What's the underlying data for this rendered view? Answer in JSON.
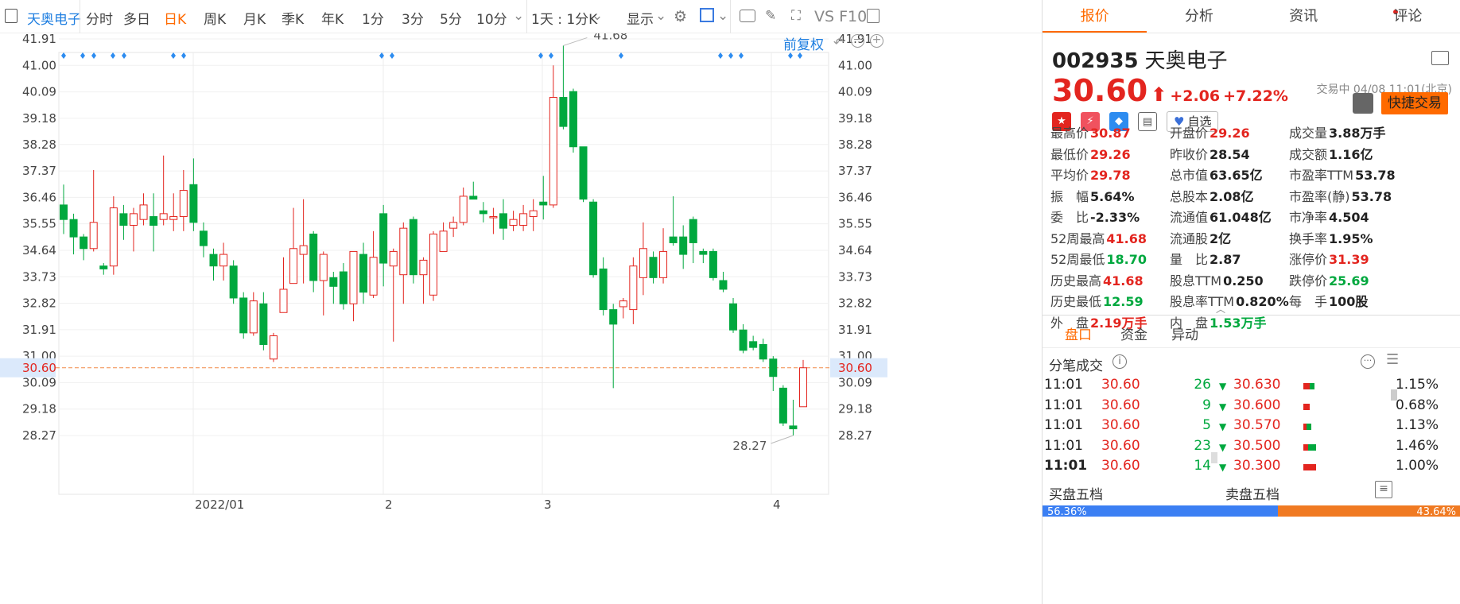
{
  "toolbar": {
    "stock_name": "天奥电子",
    "periods": [
      "分时",
      "多日",
      "日K",
      "周K",
      "月K",
      "季K",
      "年K",
      "1分",
      "3分",
      "5分",
      "10分"
    ],
    "range_select": "1天 : 1分K",
    "display_label": "显示",
    "f10_label": "VS F10"
  },
  "chart": {
    "adjust_label": "前复权",
    "y_ticks": [
      "41.91",
      "41.00",
      "40.09",
      "39.18",
      "38.28",
      "37.37",
      "36.46",
      "35.55",
      "34.64",
      "33.73",
      "32.82",
      "31.91",
      "31.00",
      "30.09",
      "29.18",
      "28.27"
    ],
    "current_price_label": "30.60",
    "x_labels": [
      "2022/01",
      "2",
      "3",
      "4"
    ],
    "max_label": "41.68",
    "min_label": "28.27"
  },
  "chart_data": {
    "type": "candlestick",
    "ylim": [
      27.6,
      42.5
    ],
    "current_price": 30.6,
    "high_annotation": 41.68,
    "low_annotation": 28.27,
    "candles": [
      [
        36.2,
        35.7,
        36.9,
        35.2
      ],
      [
        35.7,
        35.1,
        35.9,
        34.5
      ],
      [
        35.1,
        34.7,
        35.2,
        34.3
      ],
      [
        34.7,
        35.6,
        37.4,
        34.6
      ],
      [
        34.1,
        34.0,
        34.2,
        33.8
      ],
      [
        34.1,
        36.1,
        36.5,
        33.8
      ],
      [
        35.9,
        35.5,
        36.2,
        35.0
      ],
      [
        35.5,
        35.9,
        36.1,
        34.6
      ],
      [
        35.7,
        36.2,
        36.6,
        35.5
      ],
      [
        35.8,
        35.5,
        36.6,
        34.6
      ],
      [
        35.7,
        35.9,
        37.9,
        35.5
      ],
      [
        35.7,
        35.8,
        36.6,
        35.3
      ],
      [
        35.8,
        36.7,
        37.4,
        35.3
      ],
      [
        36.9,
        35.6,
        37.8,
        35.3
      ],
      [
        35.3,
        34.8,
        35.6,
        34.4
      ],
      [
        34.5,
        34.1,
        34.7,
        33.6
      ],
      [
        34.1,
        34.5,
        34.9,
        33.6
      ],
      [
        34.1,
        33.0,
        34.3,
        32.8
      ],
      [
        33.0,
        31.8,
        33.2,
        31.6
      ],
      [
        31.8,
        32.9,
        33.2,
        31.7
      ],
      [
        32.8,
        31.4,
        33.2,
        31.2
      ],
      [
        30.9,
        31.7,
        31.8,
        30.8
      ],
      [
        32.5,
        33.3,
        34.4,
        32.5
      ],
      [
        33.5,
        34.7,
        36.1,
        33.5
      ],
      [
        34.5,
        34.8,
        36.4,
        33.5
      ],
      [
        35.2,
        33.6,
        35.3,
        33.2
      ],
      [
        33.6,
        34.5,
        34.6,
        32.4
      ],
      [
        33.7,
        33.4,
        33.9,
        32.8
      ],
      [
        33.9,
        32.8,
        34.2,
        32.6
      ],
      [
        32.8,
        34.6,
        34.6,
        32.2
      ],
      [
        34.5,
        33.2,
        34.9,
        32.8
      ],
      [
        33.1,
        34.4,
        35.3,
        33.0
      ],
      [
        35.9,
        34.2,
        36.2,
        33.4
      ],
      [
        34.1,
        34.6,
        34.7,
        31.5
      ],
      [
        33.8,
        35.4,
        35.6,
        32.8
      ],
      [
        35.7,
        33.8,
        35.8,
        33.5
      ],
      [
        33.8,
        34.3,
        34.4,
        32.8
      ],
      [
        33.1,
        35.2,
        35.3,
        32.9
      ],
      [
        34.6,
        35.3,
        35.6,
        34.6
      ],
      [
        35.4,
        35.6,
        35.8,
        35.1
      ],
      [
        35.6,
        36.5,
        36.8,
        35.5
      ],
      [
        36.5,
        36.4,
        37.0,
        36.4
      ],
      [
        36.0,
        35.9,
        36.3,
        35.6
      ],
      [
        35.8,
        35.8,
        36.1,
        35.2
      ],
      [
        35.9,
        35.4,
        36.4,
        35.0
      ],
      [
        35.5,
        35.7,
        36.0,
        35.3
      ],
      [
        35.5,
        35.9,
        36.2,
        35.3
      ],
      [
        35.8,
        36.0,
        36.4,
        35.3
      ],
      [
        36.3,
        36.2,
        37.2,
        35.7
      ],
      [
        36.2,
        39.9,
        41.0,
        36.1
      ],
      [
        39.9,
        38.9,
        41.68,
        38.8
      ],
      [
        40.1,
        38.2,
        40.2,
        38.0
      ],
      [
        38.2,
        36.4,
        38.2,
        36.3
      ],
      [
        36.3,
        33.8,
        36.4,
        33.7
      ],
      [
        34.0,
        32.6,
        34.4,
        32.4
      ],
      [
        32.6,
        32.1,
        32.8,
        29.9
      ],
      [
        32.7,
        32.9,
        33.0,
        32.3
      ],
      [
        32.6,
        34.1,
        34.4,
        32.1
      ],
      [
        33.7,
        34.7,
        35.6,
        33.1
      ],
      [
        34.4,
        33.7,
        34.6,
        33.5
      ],
      [
        33.7,
        34.6,
        35.4,
        33.5
      ],
      [
        35.1,
        34.9,
        36.5,
        34.8
      ],
      [
        35.1,
        34.5,
        35.5,
        34.0
      ],
      [
        35.7,
        34.9,
        35.8,
        34.2
      ],
      [
        34.6,
        34.5,
        34.7,
        34.2
      ],
      [
        34.6,
        33.7,
        34.7,
        33.6
      ],
      [
        33.6,
        33.3,
        33.9,
        33.2
      ],
      [
        32.8,
        31.9,
        33.0,
        31.8
      ],
      [
        31.9,
        31.2,
        32.1,
        31.1
      ],
      [
        31.5,
        31.3,
        31.7,
        31.2
      ],
      [
        31.4,
        30.9,
        31.6,
        30.8
      ],
      [
        30.9,
        30.3,
        31.0,
        29.8
      ],
      [
        29.9,
        28.7,
        30.0,
        28.6
      ],
      [
        28.6,
        28.5,
        29.5,
        28.27
      ],
      [
        29.26,
        30.6,
        30.87,
        29.26
      ]
    ]
  },
  "panel": {
    "tabs": [
      "报价",
      "分析",
      "资讯",
      "评论"
    ],
    "code": "002935",
    "name": "天奥电子",
    "price": "30.60",
    "change": "+2.06",
    "change_pct": "+7.22%",
    "status": "交易中 04/08 11:01(北京)",
    "fav_label": "自选",
    "quick_trade": "快捷交易",
    "quotes": [
      [
        {
          "l": "最高价",
          "v": "30.87",
          "c": "up"
        },
        {
          "l": "开盘价",
          "v": "29.26",
          "c": "up"
        },
        {
          "l": "成交量",
          "v": "3.88万手",
          "c": ""
        }
      ],
      [
        {
          "l": "最低价",
          "v": "29.26",
          "c": "up"
        },
        {
          "l": "昨收价",
          "v": "28.54",
          "c": ""
        },
        {
          "l": "成交额",
          "v": "1.16亿",
          "c": ""
        }
      ],
      [
        {
          "l": "平均价",
          "v": "29.78",
          "c": "up"
        },
        {
          "l": "总市值",
          "v": "63.65亿",
          "c": ""
        },
        {
          "l": "市盈率TTM",
          "v": "53.78",
          "c": ""
        }
      ],
      [
        {
          "l": "振　幅",
          "v": "5.64%",
          "c": ""
        },
        {
          "l": "总股本",
          "v": "2.08亿",
          "c": ""
        },
        {
          "l": "市盈率(静)",
          "v": "53.78",
          "c": ""
        }
      ],
      [
        {
          "l": "委　比",
          "v": "-2.33%",
          "c": ""
        },
        {
          "l": "流通值",
          "v": "61.048亿",
          "c": ""
        },
        {
          "l": "市净率",
          "v": "4.504",
          "c": ""
        }
      ],
      [
        {
          "l": "52周最高",
          "v": "41.68",
          "c": "up"
        },
        {
          "l": "流通股",
          "v": "2亿",
          "c": ""
        },
        {
          "l": "换手率",
          "v": "1.95%",
          "c": ""
        }
      ],
      [
        {
          "l": "52周最低",
          "v": "18.70",
          "c": "dn"
        },
        {
          "l": "量　比",
          "v": "2.87",
          "c": ""
        },
        {
          "l": "涨停价",
          "v": "31.39",
          "c": "up"
        }
      ],
      [
        {
          "l": "历史最高",
          "v": "41.68",
          "c": "up"
        },
        {
          "l": "股息TTM",
          "v": "0.250",
          "c": ""
        },
        {
          "l": "跌停价",
          "v": "25.69",
          "c": "dn"
        }
      ],
      [
        {
          "l": "历史最低",
          "v": "12.59",
          "c": "dn"
        },
        {
          "l": "股息率TTM",
          "v": "0.820%",
          "c": ""
        },
        {
          "l": "每　手",
          "v": "100股",
          "c": ""
        }
      ],
      [
        {
          "l": "外　盘",
          "v": "2.19万手",
          "c": "up"
        },
        {
          "l": "内　盘",
          "v": "1.53万手",
          "c": "dn"
        },
        {
          "l": "",
          "v": "",
          "c": ""
        }
      ]
    ],
    "subtabs": [
      "盘口",
      "资金",
      "异动"
    ],
    "ticks_title": "分笔成交",
    "ticks": [
      {
        "time": "11:01",
        "price": "30.60",
        "vol": "26"
      },
      {
        "time": "11:01",
        "price": "30.60",
        "vol": "9"
      },
      {
        "time": "11:01",
        "price": "30.60",
        "vol": "5"
      },
      {
        "time": "11:01",
        "price": "30.60",
        "vol": "23"
      },
      {
        "time": "11:01",
        "price": "30.60",
        "vol": "14"
      }
    ],
    "depth": [
      {
        "price": "30.630",
        "pct": "1.15%"
      },
      {
        "price": "30.600",
        "pct": "0.68%"
      },
      {
        "price": "30.570",
        "pct": "1.13%"
      },
      {
        "price": "30.500",
        "pct": "1.46%"
      },
      {
        "price": "30.300",
        "pct": "1.00%"
      }
    ],
    "buy_five": "买盘五档",
    "sell_five": "卖盘五档",
    "buy_pct": "56.36%",
    "sell_pct": "43.64%"
  }
}
